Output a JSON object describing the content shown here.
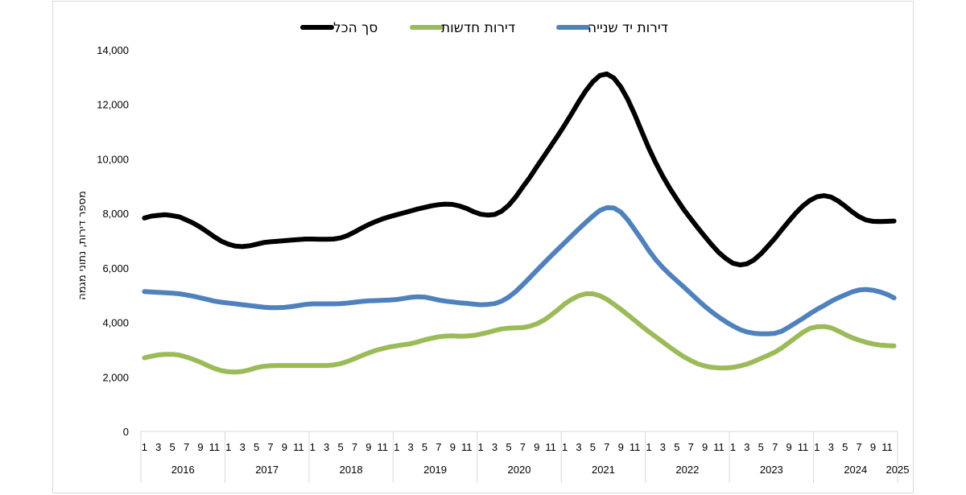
{
  "chart_data": {
    "type": "line",
    "ylabel": "מספר דירות, נתוני מגמה",
    "ylim": [
      0,
      14000
    ],
    "yticks": [
      "0",
      "2,000",
      "4,000",
      "6,000",
      "8,000",
      "10,000",
      "12,000",
      "14,000"
    ],
    "yticks_values": [
      0,
      2000,
      4000,
      6000,
      8000,
      10000,
      12000,
      14000
    ],
    "grid": false,
    "legend_position": "top",
    "years": [
      "2016",
      "2017",
      "2018",
      "2019",
      "2020",
      "2021",
      "2022",
      "2023",
      "2024",
      "2025"
    ],
    "month_ticks": [
      "1",
      "3",
      "5",
      "7",
      "9",
      "11"
    ],
    "x_start": "2016-01",
    "x_end": "2025-01",
    "series": [
      {
        "name": "סך הכל",
        "color": "#000000",
        "values": [
          7830,
          7900,
          7930,
          7950,
          7920,
          7870,
          7760,
          7640,
          7490,
          7320,
          7140,
          6980,
          6870,
          6800,
          6780,
          6810,
          6870,
          6930,
          6960,
          6980,
          7000,
          7020,
          7040,
          7060,
          7060,
          7050,
          7050,
          7060,
          7100,
          7190,
          7320,
          7460,
          7590,
          7700,
          7800,
          7880,
          7950,
          8020,
          8090,
          8160,
          8220,
          8280,
          8320,
          8340,
          8330,
          8270,
          8180,
          8060,
          7970,
          7940,
          7960,
          8080,
          8300,
          8600,
          8970,
          9320,
          9710,
          10090,
          10470,
          10850,
          11250,
          11670,
          12100,
          12500,
          12830,
          13060,
          13120,
          12970,
          12640,
          12180,
          11620,
          11000,
          10390,
          9850,
          9360,
          8920,
          8520,
          8140,
          7800,
          7470,
          7150,
          6840,
          6560,
          6340,
          6170,
          6110,
          6150,
          6290,
          6520,
          6800,
          7090,
          7410,
          7720,
          8020,
          8280,
          8480,
          8610,
          8650,
          8600,
          8460,
          8270,
          8060,
          7880,
          7760,
          7710,
          7700,
          7710,
          7720
        ]
      },
      {
        "name": "דירות חדשות",
        "color": "#9bbb59",
        "values": [
          2700,
          2760,
          2810,
          2830,
          2830,
          2800,
          2730,
          2640,
          2540,
          2420,
          2310,
          2230,
          2190,
          2180,
          2200,
          2260,
          2340,
          2390,
          2410,
          2420,
          2420,
          2420,
          2420,
          2420,
          2420,
          2420,
          2420,
          2440,
          2490,
          2570,
          2670,
          2780,
          2880,
          2970,
          3040,
          3100,
          3140,
          3180,
          3220,
          3280,
          3360,
          3420,
          3470,
          3500,
          3510,
          3490,
          3500,
          3520,
          3570,
          3630,
          3700,
          3760,
          3790,
          3800,
          3810,
          3860,
          3950,
          4080,
          4260,
          4460,
          4680,
          4850,
          4980,
          5050,
          5050,
          4980,
          4850,
          4670,
          4480,
          4280,
          4070,
          3860,
          3660,
          3470,
          3280,
          3090,
          2910,
          2740,
          2600,
          2480,
          2400,
          2350,
          2330,
          2330,
          2350,
          2400,
          2470,
          2570,
          2680,
          2790,
          2910,
          3070,
          3260,
          3450,
          3640,
          3780,
          3840,
          3850,
          3800,
          3690,
          3560,
          3440,
          3350,
          3270,
          3210,
          3170,
          3150,
          3140
        ]
      },
      {
        "name": "דירות יד שנייה",
        "color": "#4f81bd",
        "values": [
          5130,
          5120,
          5100,
          5090,
          5070,
          5050,
          5010,
          4960,
          4900,
          4840,
          4780,
          4740,
          4710,
          4680,
          4650,
          4620,
          4590,
          4560,
          4540,
          4540,
          4550,
          4580,
          4620,
          4660,
          4680,
          4680,
          4680,
          4680,
          4690,
          4710,
          4740,
          4770,
          4790,
          4800,
          4810,
          4820,
          4840,
          4880,
          4920,
          4940,
          4930,
          4880,
          4820,
          4780,
          4750,
          4720,
          4700,
          4670,
          4650,
          4660,
          4690,
          4780,
          4930,
          5130,
          5380,
          5640,
          5910,
          6170,
          6430,
          6680,
          6930,
          7180,
          7430,
          7670,
          7900,
          8110,
          8210,
          8200,
          8050,
          7760,
          7400,
          7030,
          6640,
          6300,
          6010,
          5760,
          5530,
          5300,
          5060,
          4820,
          4590,
          4380,
          4190,
          4020,
          3870,
          3740,
          3650,
          3600,
          3580,
          3580,
          3600,
          3680,
          3830,
          3990,
          4150,
          4320,
          4480,
          4620,
          4770,
          4900,
          5010,
          5120,
          5190,
          5210,
          5180,
          5120,
          5030,
          4900
        ]
      }
    ]
  }
}
